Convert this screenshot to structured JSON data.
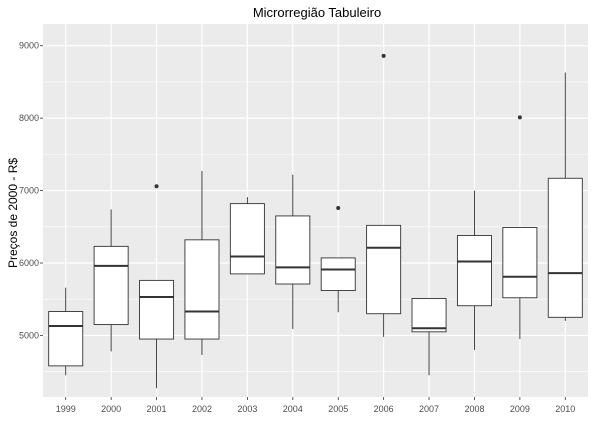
{
  "chart_data": {
    "type": "boxplot",
    "title": "Microrregião  Tabuleiro",
    "xlabel": "",
    "ylabel": "Preços de 2000 - R$",
    "ylim": [
      4150,
      9300
    ],
    "yticks": [
      5000,
      6000,
      7000,
      8000,
      9000
    ],
    "grid": true,
    "colors": {
      "panel": "#ebebeb",
      "grid_major": "#ffffff",
      "box_fill": "#ffffff",
      "box_line": "#333333"
    },
    "categories": [
      "1999",
      "2000",
      "2001",
      "2002",
      "2003",
      "2004",
      "2005",
      "2006",
      "2007",
      "2008",
      "2009",
      "2010"
    ],
    "boxes": [
      {
        "category": "1999",
        "low": 4450,
        "q1": 4580,
        "median": 5130,
        "q3": 5330,
        "high": 5660,
        "outliers": []
      },
      {
        "category": "2000",
        "low": 4780,
        "q1": 5150,
        "median": 5960,
        "q3": 6230,
        "high": 6740,
        "outliers": []
      },
      {
        "category": "2001",
        "low": 4270,
        "q1": 4950,
        "median": 5530,
        "q3": 5760,
        "high": 5760,
        "outliers": [
          7060
        ]
      },
      {
        "category": "2002",
        "low": 4730,
        "q1": 4950,
        "median": 5330,
        "q3": 6320,
        "high": 7270,
        "outliers": []
      },
      {
        "category": "2003",
        "low": 5850,
        "q1": 5850,
        "median": 6090,
        "q3": 6820,
        "high": 6910,
        "outliers": []
      },
      {
        "category": "2004",
        "low": 5090,
        "q1": 5710,
        "median": 5940,
        "q3": 6650,
        "high": 7220,
        "outliers": []
      },
      {
        "category": "2005",
        "low": 5320,
        "q1": 5620,
        "median": 5910,
        "q3": 6070,
        "high": 6070,
        "outliers": [
          6760
        ]
      },
      {
        "category": "2006",
        "low": 4980,
        "q1": 5300,
        "median": 6210,
        "q3": 6520,
        "high": 6520,
        "outliers": [
          8860
        ]
      },
      {
        "category": "2007",
        "low": 4450,
        "q1": 5050,
        "median": 5100,
        "q3": 5510,
        "high": 5510,
        "outliers": []
      },
      {
        "category": "2008",
        "low": 4800,
        "q1": 5410,
        "median": 6020,
        "q3": 6380,
        "high": 7000,
        "outliers": []
      },
      {
        "category": "2009",
        "low": 4950,
        "q1": 5520,
        "median": 5810,
        "q3": 6490,
        "high": 6490,
        "outliers": [
          8010
        ]
      },
      {
        "category": "2010",
        "low": 5200,
        "q1": 5250,
        "median": 5860,
        "q3": 7170,
        "high": 8630,
        "outliers": []
      }
    ]
  }
}
